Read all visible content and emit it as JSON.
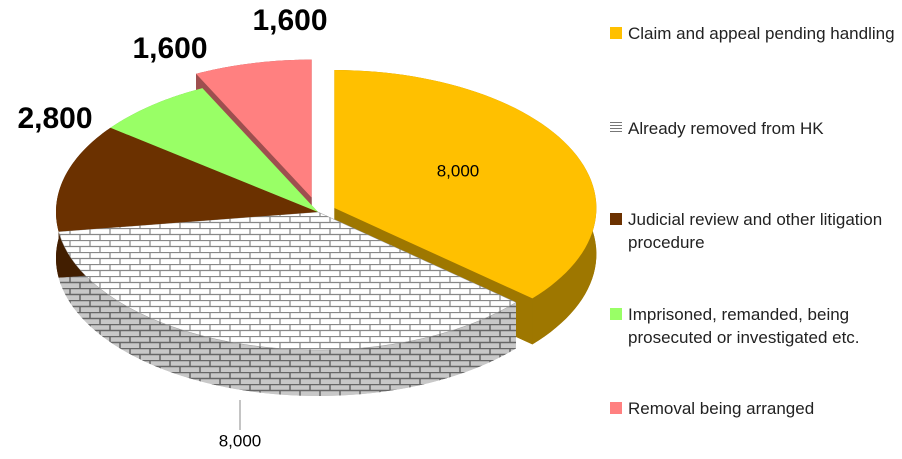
{
  "chart_data": {
    "type": "pie",
    "categories": [
      "Claim and appeal pending handling",
      "Already removed from HK",
      "Judicial review and other litigation procedure",
      "Imprisoned, remanded, being prosecuted or investigated etc.",
      "Removal being arranged"
    ],
    "values": [
      8000,
      8000,
      2800,
      1600,
      1600
    ],
    "value_labels": [
      "8,000",
      "8,000",
      "2,800",
      "1,600",
      "1,600"
    ],
    "colors": [
      "#ffc000",
      "#ffffff",
      "#6b3100",
      "#99ff66",
      "#ff8080"
    ],
    "patterns": [
      null,
      "brick",
      null,
      null,
      null
    ]
  }
}
